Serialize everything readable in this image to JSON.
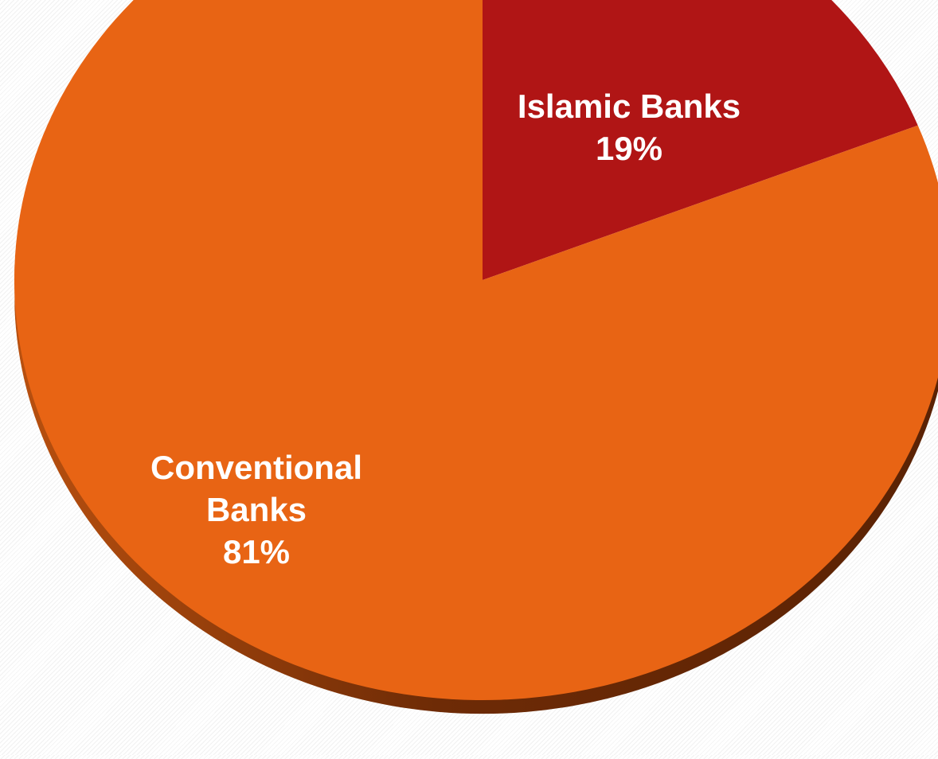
{
  "chart_data": {
    "type": "pie",
    "style": "3d",
    "title": "",
    "legend": "none",
    "slices": [
      {
        "label_lines": [
          "Islamic Banks"
        ],
        "percent_label": "19%",
        "value": 19,
        "color": "#b01515"
      },
      {
        "label_lines": [
          "Conventional",
          "Banks"
        ],
        "percent_label": "81%",
        "value": 81,
        "color": "#e86414"
      }
    ],
    "side_color_light": "#b9500f",
    "side_color_dark": "#5a2204"
  }
}
